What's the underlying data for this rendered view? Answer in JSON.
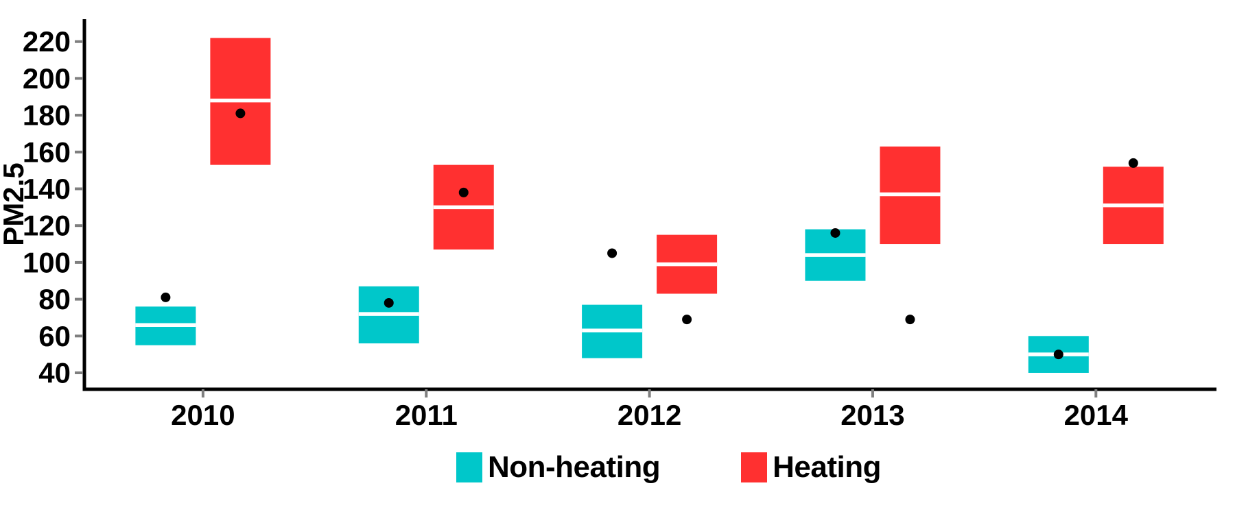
{
  "chart_data": {
    "type": "crossbar",
    "title": "",
    "xlabel": "",
    "ylabel": "PM2.5",
    "categories": [
      "2010",
      "2011",
      "2012",
      "2013",
      "2014"
    ],
    "y_ticks": [
      40,
      60,
      80,
      100,
      120,
      140,
      160,
      180,
      200,
      220
    ],
    "ylim": [
      31,
      232
    ],
    "grid": false,
    "legend_position": "bottom",
    "axis_color": "#000000",
    "tick_mark_color": "#7F7F7F",
    "median_line_color": "#FFFFFF",
    "point_color": "#000000",
    "series": [
      {
        "name": "Non-heating",
        "color": "#00C7CA",
        "boxes": [
          {
            "category": "2010",
            "low": 55,
            "mid": 66,
            "high": 76,
            "point": 81
          },
          {
            "category": "2011",
            "low": 56,
            "mid": 72,
            "high": 87,
            "point": 78
          },
          {
            "category": "2012",
            "low": 48,
            "mid": 63,
            "high": 77,
            "point": 105
          },
          {
            "category": "2013",
            "low": 90,
            "mid": 104,
            "high": 118,
            "point": 116
          },
          {
            "category": "2014",
            "low": 40,
            "mid": 50,
            "high": 60,
            "point": 50
          }
        ]
      },
      {
        "name": "Heating",
        "color": "#FF3030",
        "boxes": [
          {
            "category": "2010",
            "low": 153,
            "mid": 188,
            "high": 222,
            "point": 181
          },
          {
            "category": "2011",
            "low": 107,
            "mid": 130,
            "high": 153,
            "point": 138
          },
          {
            "category": "2012",
            "low": 83,
            "mid": 99,
            "high": 115,
            "point": 69
          },
          {
            "category": "2013",
            "low": 110,
            "mid": 137,
            "high": 163,
            "point": 69
          },
          {
            "category": "2014",
            "low": 110,
            "mid": 131,
            "high": 152,
            "point": 154
          }
        ]
      }
    ]
  },
  "legend": {
    "items": [
      {
        "label": "Non-heating",
        "color": "#00C7CA"
      },
      {
        "label": "Heating",
        "color": "#FF3030"
      }
    ]
  }
}
